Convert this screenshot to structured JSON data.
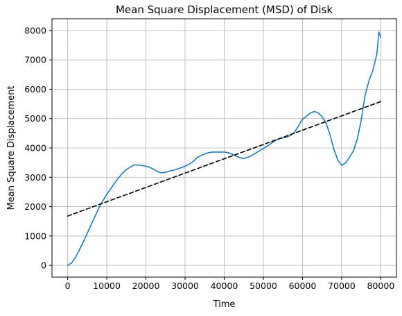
{
  "chart_data": {
    "type": "line",
    "title": "Mean Square Displacement (MSD) of Disk",
    "xlabel": "Time",
    "ylabel": "Mean Square Displacement",
    "xlim": [
      -4000,
      84000
    ],
    "ylim": [
      -400,
      8400
    ],
    "xticks": [
      0,
      10000,
      20000,
      30000,
      40000,
      50000,
      60000,
      70000,
      80000
    ],
    "yticks": [
      0,
      1000,
      2000,
      3000,
      4000,
      5000,
      6000,
      7000,
      8000
    ],
    "grid": true,
    "series": [
      {
        "style": "solid",
        "color": "#1f77b4",
        "x": [
          0,
          1000,
          2000,
          3000,
          4000,
          5000,
          6000,
          7000,
          8000,
          9000,
          10000,
          11000,
          12000,
          13000,
          14000,
          15000,
          16000,
          17000,
          18000,
          19000,
          20000,
          21000,
          22000,
          23000,
          24000,
          25000,
          26000,
          27000,
          28000,
          29000,
          30000,
          31000,
          32000,
          33000,
          34000,
          35000,
          36000,
          37000,
          38000,
          39000,
          40000,
          41000,
          42000,
          43000,
          44000,
          45000,
          46000,
          47000,
          48000,
          49000,
          50000,
          51000,
          52000,
          53000,
          54000,
          55000,
          56000,
          57000,
          58000,
          59000,
          60000,
          61000,
          62000,
          63000,
          64000,
          65000,
          66000,
          67000,
          68000,
          69000,
          70000,
          71000,
          72000,
          73000,
          74000,
          75000,
          76000,
          77000,
          78000,
          79000,
          79500,
          80000
        ],
        "y": [
          0,
          80,
          270,
          520,
          800,
          1090,
          1380,
          1670,
          1960,
          2200,
          2420,
          2610,
          2800,
          2980,
          3140,
          3260,
          3350,
          3420,
          3420,
          3400,
          3380,
          3340,
          3270,
          3190,
          3150,
          3170,
          3210,
          3240,
          3280,
          3330,
          3380,
          3440,
          3530,
          3660,
          3740,
          3790,
          3840,
          3860,
          3860,
          3860,
          3860,
          3840,
          3790,
          3720,
          3670,
          3640,
          3680,
          3740,
          3820,
          3900,
          3980,
          4060,
          4160,
          4250,
          4310,
          4340,
          4370,
          4430,
          4540,
          4760,
          4980,
          5080,
          5190,
          5240,
          5200,
          5060,
          4850,
          4460,
          3960,
          3590,
          3410,
          3490,
          3680,
          3900,
          4300,
          4950,
          5800,
          6300,
          6650,
          7200,
          7950,
          7750
        ]
      },
      {
        "style": "dashed",
        "color": "#000000",
        "x": [
          0,
          80000
        ],
        "y": [
          1680,
          5580
        ]
      }
    ]
  }
}
